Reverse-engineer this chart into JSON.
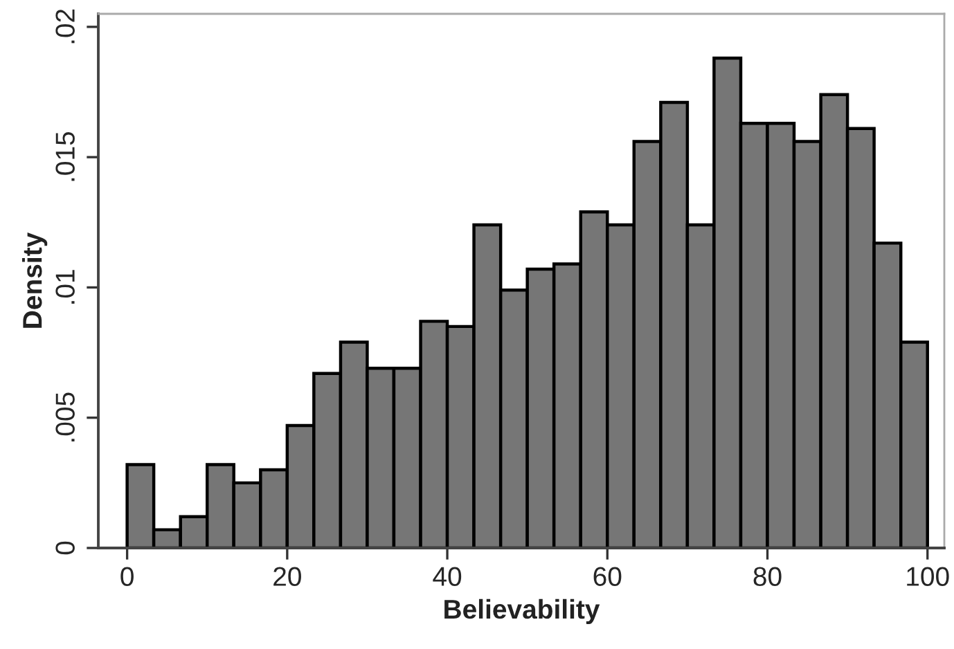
{
  "chart_data": {
    "type": "histogram",
    "xlabel": "Believability",
    "ylabel": "Density",
    "bins": [
      0,
      3.33,
      6.67,
      10,
      13.33,
      16.67,
      20,
      23.33,
      26.67,
      30,
      33.33,
      36.67,
      40,
      43.33,
      46.67,
      50,
      53.33,
      56.67,
      60,
      63.33,
      66.67,
      70,
      73.33,
      76.67,
      80,
      83.33,
      86.67,
      90,
      93.33,
      96.67,
      100
    ],
    "values": [
      0.0032,
      0.0007,
      0.0012,
      0.0032,
      0.0025,
      0.003,
      0.0047,
      0.0067,
      0.0079,
      0.0069,
      0.0069,
      0.0087,
      0.0085,
      0.0124,
      0.0099,
      0.0107,
      0.0109,
      0.0129,
      0.0124,
      0.0156,
      0.0171,
      0.0124,
      0.0188,
      0.0163,
      0.0163,
      0.0156,
      0.0174,
      0.0161,
      0.0117,
      0.0079
    ],
    "color": "#767676",
    "xlim": [
      -3.6,
      102.1
    ],
    "ylim": [
      0,
      0.0205
    ],
    "xticks": [
      0,
      20,
      40,
      60,
      80,
      100
    ],
    "yticks": [
      {
        "value": 0,
        "label": "0"
      },
      {
        "value": 0.005,
        "label": ".005"
      },
      {
        "value": 0.01,
        "label": ".01"
      },
      {
        "value": 0.015,
        "label": ".015"
      },
      {
        "value": 0.02,
        "label": ".02"
      }
    ],
    "grid": false
  }
}
